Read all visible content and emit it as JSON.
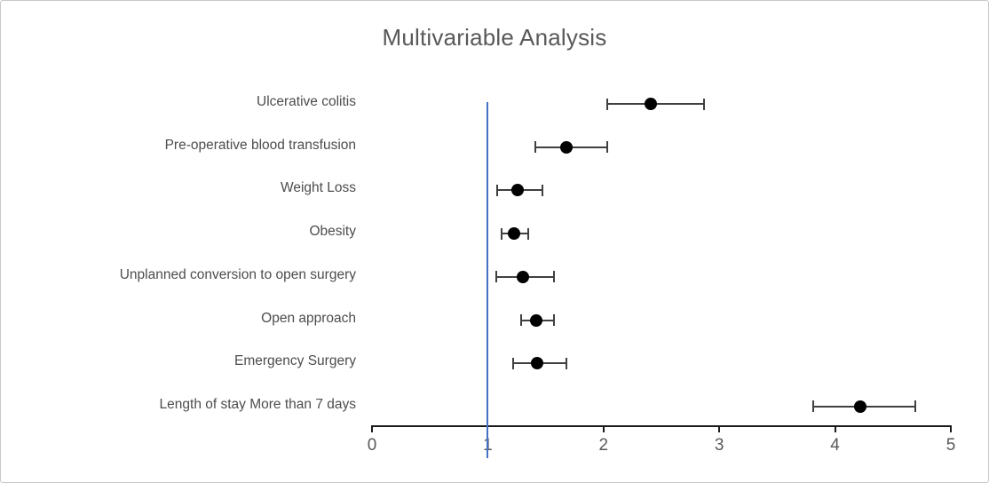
{
  "chart_data": {
    "type": "scatter",
    "subtype": "forest-plot-dot-and-whisker",
    "title": "Multivariable Analysis",
    "xlabel": "",
    "ylabel": "",
    "xlim": [
      0,
      5
    ],
    "xticks": [
      0,
      1,
      2,
      3,
      4,
      5
    ],
    "xtick_labels": [
      "0",
      "1",
      "2",
      "3",
      "4",
      "5"
    ],
    "reference_line_x": 1,
    "grid": false,
    "legend": false,
    "categories": [
      "Ulcerative colitis",
      "Pre-operative blood transfusion",
      "Weight Loss",
      "Obesity",
      "Unplanned conversion to open surgery",
      "Open approach",
      "Emergency Surgery",
      "Length of stay More than 7 days"
    ],
    "rows": [
      {
        "label": "Ulcerative colitis",
        "value": 2.41,
        "ci_low": 2.03,
        "ci_high": 2.87
      },
      {
        "label": "Pre-operative blood transfusion",
        "value": 1.68,
        "ci_low": 1.41,
        "ci_high": 2.03
      },
      {
        "label": "Weight Loss",
        "value": 1.26,
        "ci_low": 1.08,
        "ci_high": 1.47
      },
      {
        "label": "Obesity",
        "value": 1.23,
        "ci_low": 1.12,
        "ci_high": 1.35
      },
      {
        "label": "Unplanned conversion to open surgery",
        "value": 1.3,
        "ci_low": 1.07,
        "ci_high": 1.57
      },
      {
        "label": "Open approach",
        "value": 1.42,
        "ci_low": 1.29,
        "ci_high": 1.57
      },
      {
        "label": "Emergency Surgery",
        "value": 1.43,
        "ci_low": 1.22,
        "ci_high": 1.68
      },
      {
        "label": "Length of stay More than 7 days",
        "value": 4.22,
        "ci_low": 3.81,
        "ci_high": 4.69
      }
    ]
  },
  "colors": {
    "reference_line": "#4472C4",
    "axis": "#1a1a1a",
    "point": "#000000",
    "whisker": "#404040",
    "title_text": "#595959",
    "tick_label_text": "#595959",
    "category_label_text": "#4d4d4d",
    "frame_border": "#c8c8c8",
    "background": "#ffffff"
  }
}
